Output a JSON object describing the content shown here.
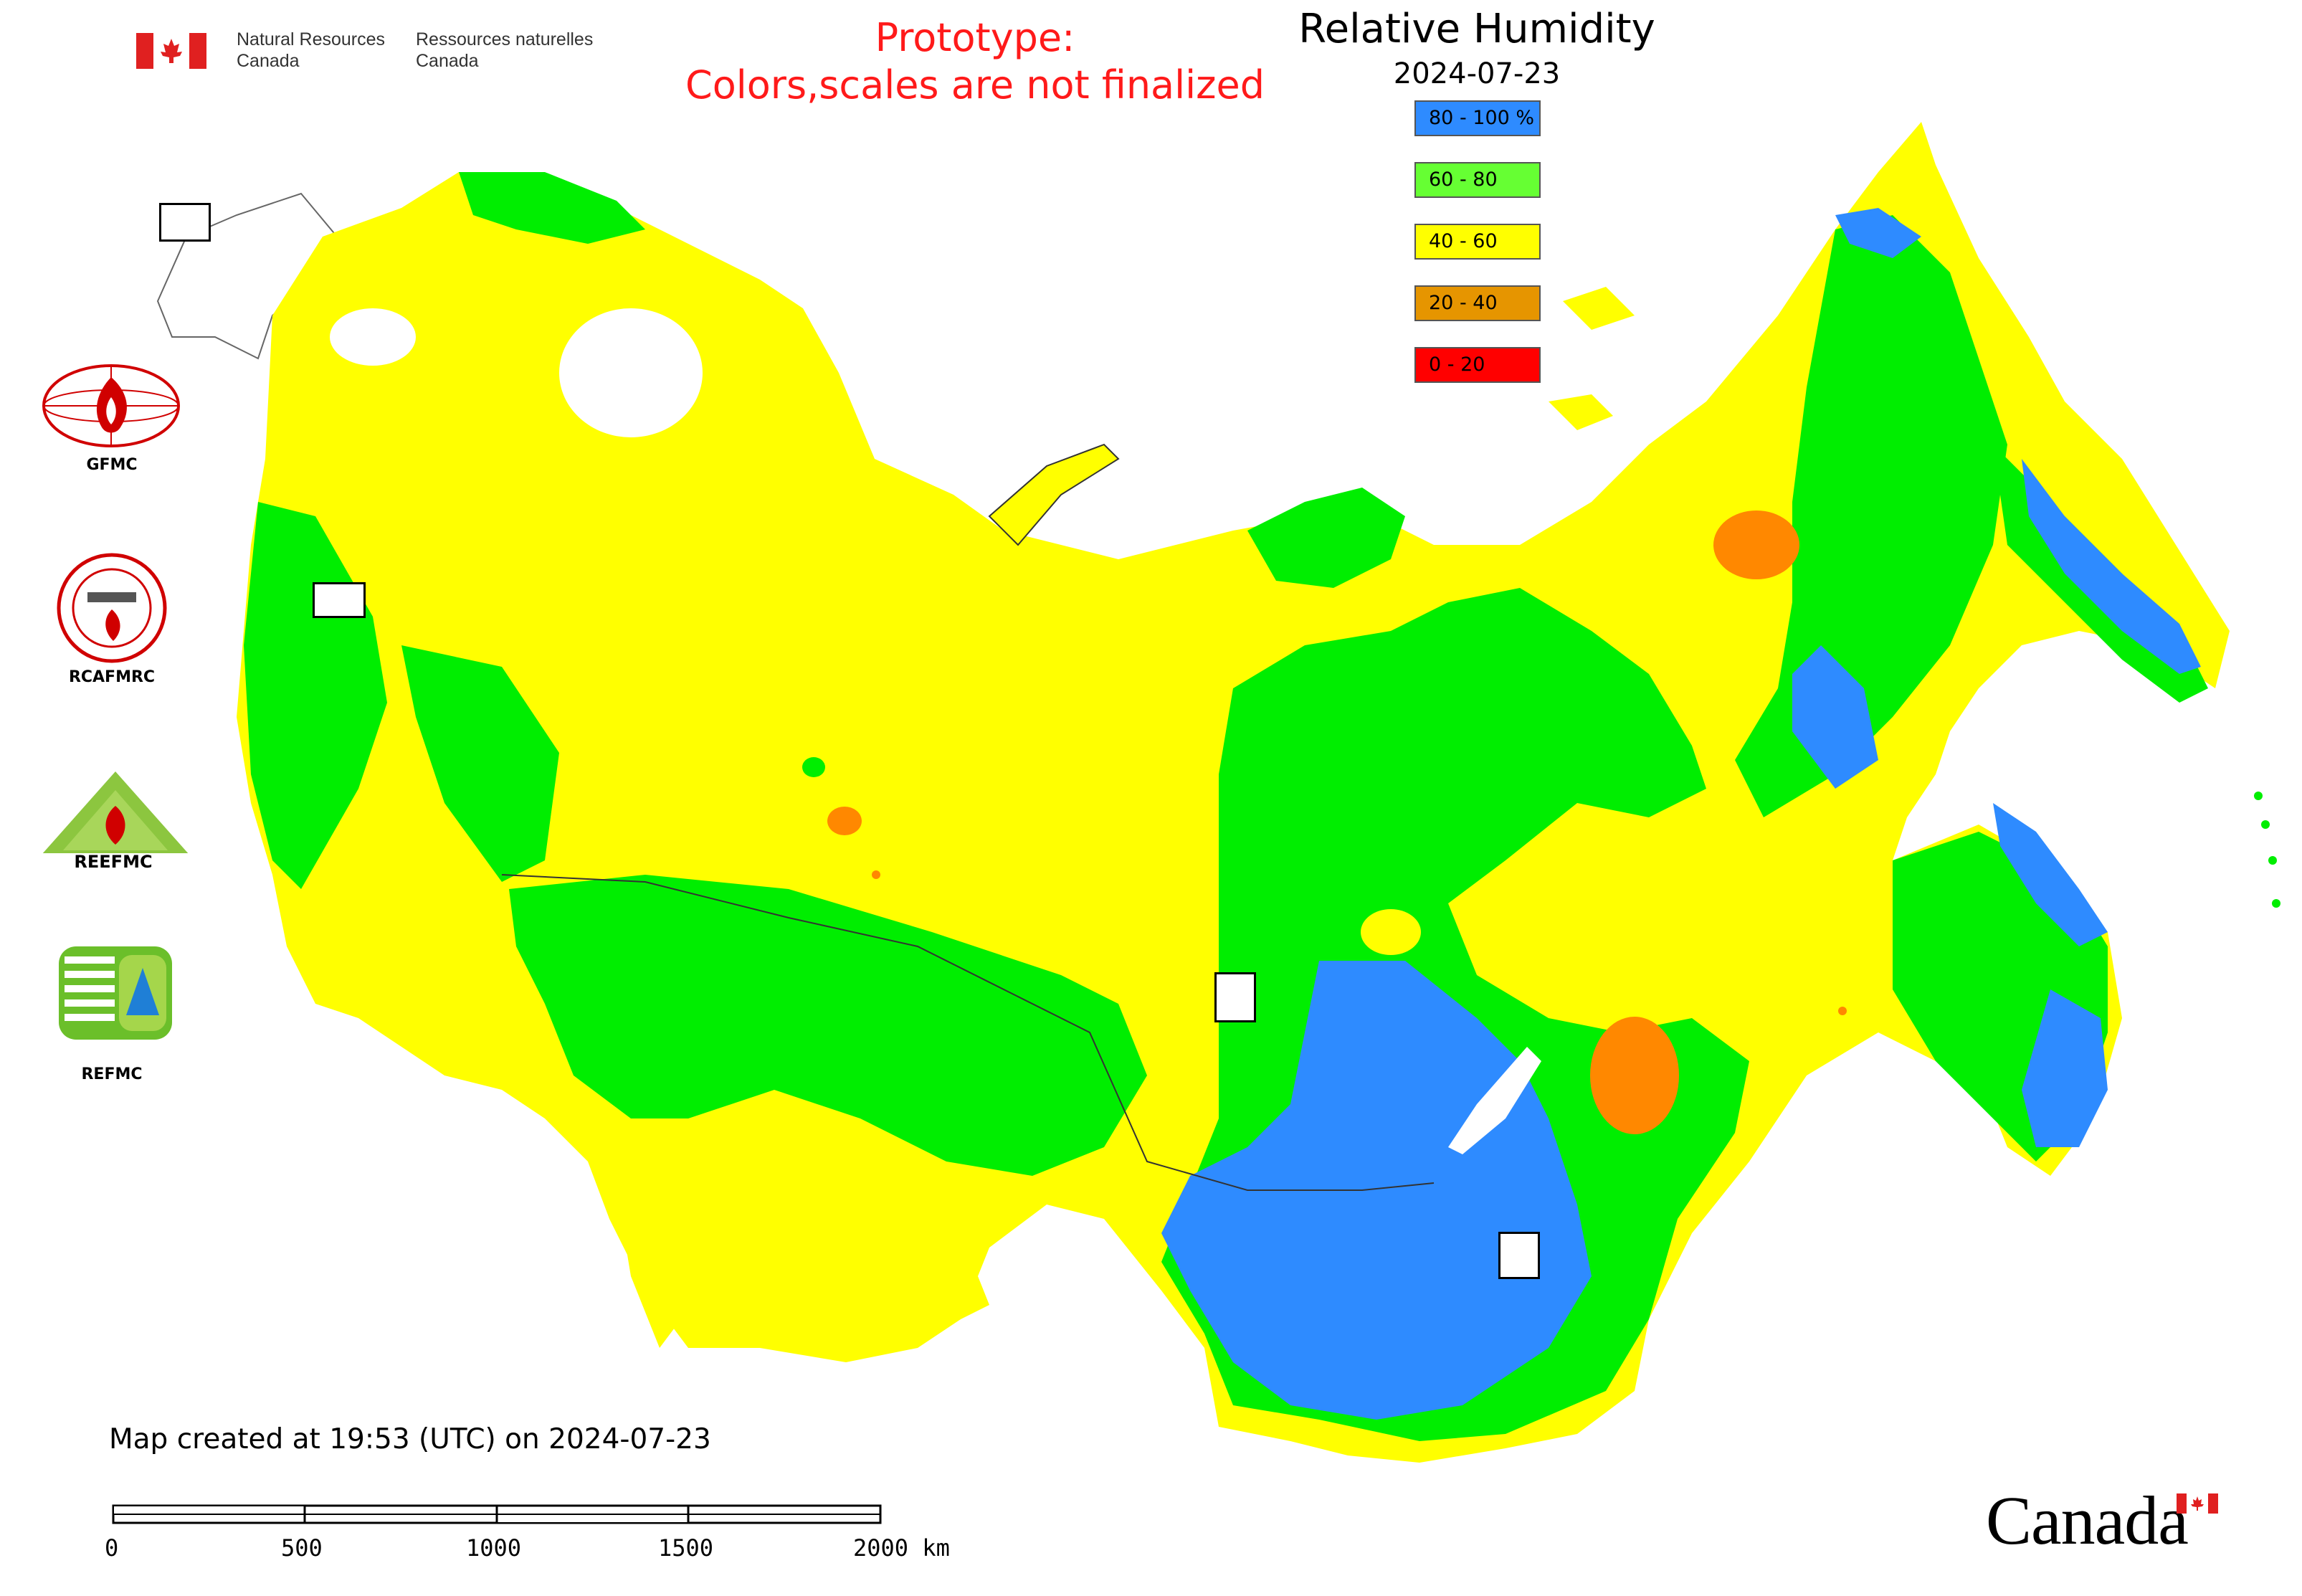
{
  "header": {
    "agency_en_line1": "Natural Resources",
    "agency_en_line2": "Canada",
    "agency_fr_line1": "Ressources naturelles",
    "agency_fr_line2": "Canada",
    "prototype_line1": "Prototype:",
    "prototype_line2": "Colors,scales are not finalized"
  },
  "map": {
    "title": "Relative Humidity",
    "date": "2024-07-23",
    "created_note": "Map created at 19:53 (UTC) on 2024-07-23"
  },
  "legend": {
    "items": [
      {
        "label": "80 - 100 %",
        "color": "#2e8bff"
      },
      {
        "label": "60 - 80",
        "color": "#66ff33"
      },
      {
        "label": "40 - 60",
        "color": "#ffff00"
      },
      {
        "label": "20 - 40",
        "color": "#e69500"
      },
      {
        "label": "0 - 20",
        "color": "#ff0000"
      }
    ]
  },
  "logos": {
    "gfmc": "GFMC",
    "rcafmrc": "RCAFMRC",
    "reefmc_text": "REEFMC",
    "refmc": "REFMC"
  },
  "scale_bar": {
    "labels": [
      "0",
      "500",
      "1000",
      "1500",
      "2000 km"
    ]
  },
  "footer": {
    "wordmark": "Canada"
  },
  "colors": {
    "humid_blue": "#2e8bff",
    "green": "#00ee00",
    "yellow": "#ffff00",
    "orange": "#ff8800",
    "red": "#ff0000",
    "prototype_red": "#ff1a1a"
  }
}
